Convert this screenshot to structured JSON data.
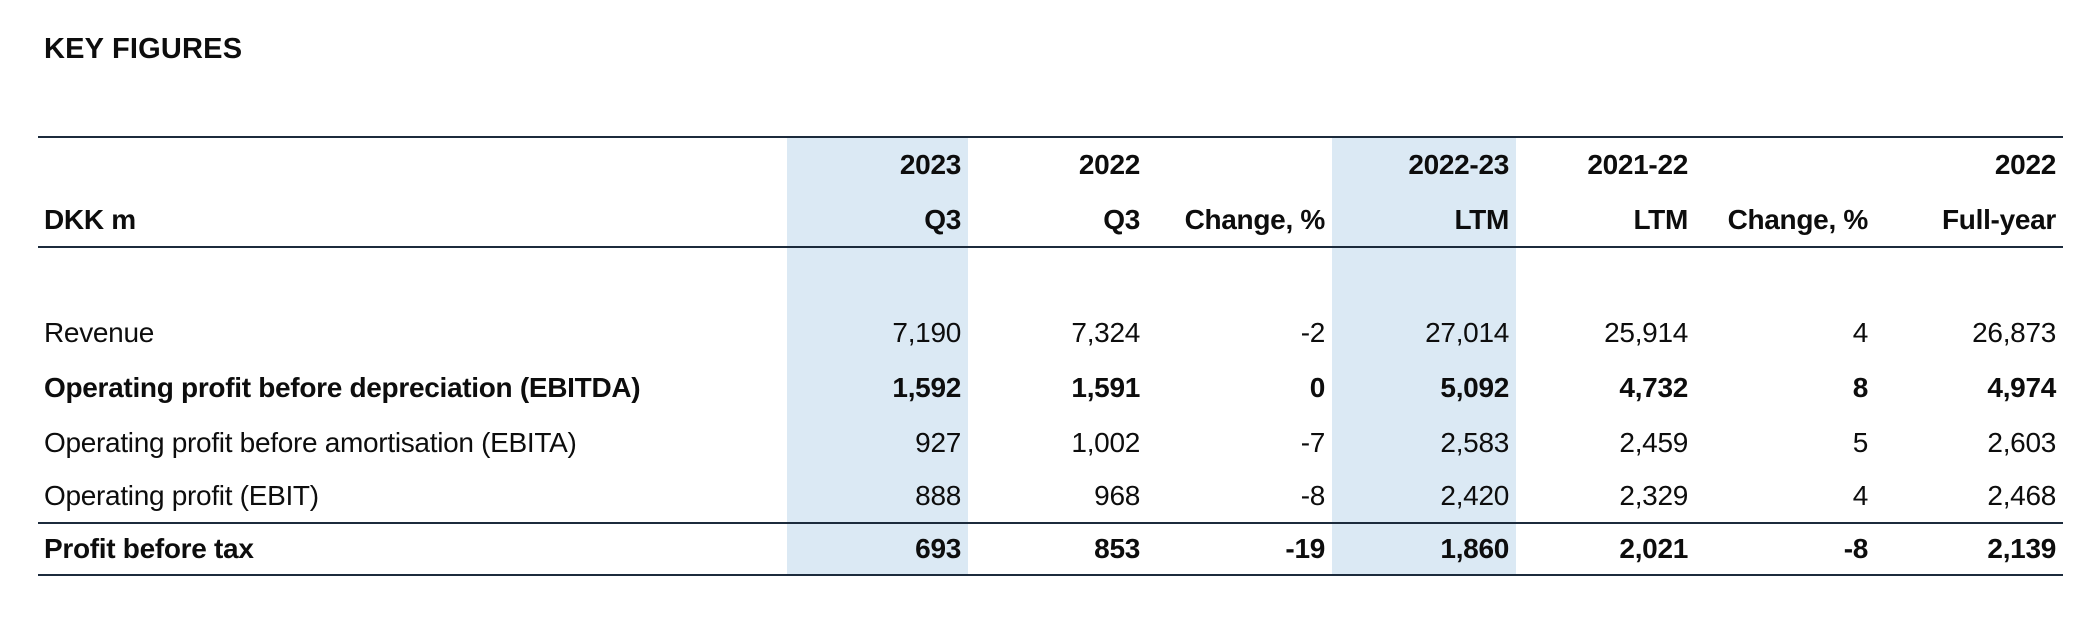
{
  "title": "KEY FIGURES",
  "table": {
    "unit_label": "DKK m",
    "header": {
      "col_groups": [
        {
          "year": "2023",
          "period": "Q3"
        },
        {
          "year": "2022",
          "period": "Q3"
        },
        {
          "year": "",
          "period": "Change, %"
        },
        {
          "year": "2022-23",
          "period": "LTM"
        },
        {
          "year": "2021-22",
          "period": "LTM"
        },
        {
          "year": "",
          "period": "Change, %"
        },
        {
          "year": "2022",
          "period": "Full-year"
        }
      ]
    },
    "rows": [
      {
        "label": "Revenue",
        "values": [
          "7,190",
          "7,324",
          "-2",
          "27,014",
          "25,914",
          "4",
          "26,873"
        ]
      },
      {
        "label": "Operating profit before depreciation (EBITDA)",
        "values": [
          "1,592",
          "1,591",
          "0",
          "5,092",
          "4,732",
          "8",
          "4,974"
        ]
      },
      {
        "label": "Operating profit before amortisation (EBITA)",
        "values": [
          "927",
          "1,002",
          "-7",
          "2,583",
          "2,459",
          "5",
          "2,603"
        ]
      },
      {
        "label": "Operating profit (EBIT)",
        "values": [
          "888",
          "968",
          "-8",
          "2,420",
          "2,329",
          "4",
          "2,468"
        ]
      },
      {
        "label": "Profit before tax",
        "values": [
          "693",
          "853",
          "-19",
          "1,860",
          "2,021",
          "-8",
          "2,139"
        ]
      }
    ],
    "colors": {
      "highlight_blue": "#dbe9f4",
      "rule_line": "#1c2b3c",
      "text": "#0d0d0d"
    }
  }
}
